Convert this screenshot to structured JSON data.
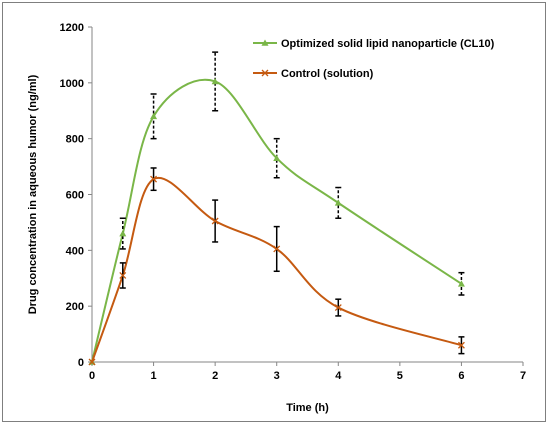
{
  "chart_data": {
    "type": "line",
    "title": "",
    "xlabel": "Time (h)",
    "ylabel": "Drug concentration in aqueous humor (ng/ml)",
    "xlim": [
      0,
      7
    ],
    "ylim": [
      0,
      1200
    ],
    "xticks": [
      "0",
      "1",
      "2",
      "3",
      "4",
      "5",
      "6",
      "7"
    ],
    "yticks": [
      "0",
      "200",
      "400",
      "600",
      "800",
      "1000",
      "1200"
    ],
    "grid": false,
    "legend_position": "top-right",
    "series": [
      {
        "name": "Optimized solid lipid nanoparticle (CL10)",
        "color": "#7ab648",
        "marker": "triangle",
        "error_style": "dashed",
        "x": [
          0,
          0.5,
          1,
          2,
          3,
          4,
          6
        ],
        "y": [
          0,
          460,
          880,
          1005,
          730,
          570,
          280
        ],
        "error": [
          0,
          55,
          80,
          105,
          70,
          55,
          40
        ]
      },
      {
        "name": "Control (solution)",
        "color": "#c55a11",
        "marker": "x",
        "error_style": "solid",
        "x": [
          0,
          0.5,
          1,
          2,
          3,
          4,
          6
        ],
        "y": [
          0,
          310,
          655,
          505,
          405,
          195,
          60
        ],
        "error": [
          0,
          45,
          40,
          75,
          80,
          30,
          30
        ]
      }
    ]
  }
}
